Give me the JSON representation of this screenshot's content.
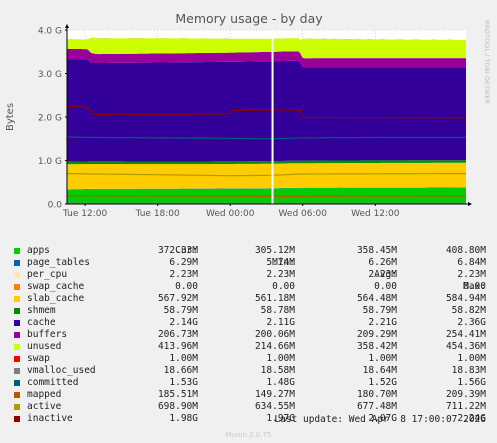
{
  "chart_data": {
    "type": "area",
    "title": "Memory usage - by day",
    "ylabel": "Bytes",
    "side_label": "RRDTOOL / TOBI OETIKER",
    "ylim": [
      0,
      4000000000
    ],
    "xlim_hours": [
      -13.5,
      19.5
    ],
    "y_ticks": [
      {
        "value": 0,
        "label": "0.0"
      },
      {
        "value": 1000000000,
        "label": "1.0 G"
      },
      {
        "value": 2000000000,
        "label": "2.0 G"
      },
      {
        "value": 3000000000,
        "label": "3.0 G"
      },
      {
        "value": 4000000000,
        "label": "4.0 G"
      }
    ],
    "x_ticks": [
      {
        "hour": -12,
        "label": "Tue 12:00"
      },
      {
        "hour": -6,
        "label": "Tue 18:00"
      },
      {
        "hour": 0,
        "label": "Wed 00:00"
      },
      {
        "hour": 6,
        "label": "Wed 06:00"
      },
      {
        "hour": 12,
        "label": "Wed 12:00"
      }
    ],
    "gap_at_hour": 3.5,
    "headers": {
      "cur": "Cur:",
      "min": "Min:",
      "avg": "Avg:",
      "max": "Max:"
    },
    "legend": [
      {
        "name": "apps",
        "color": "#00cc00",
        "cur": "372.33M",
        "min": "305.12M",
        "avg": "358.45M",
        "max": "408.80M"
      },
      {
        "name": "page_tables",
        "color": "#0066b3",
        "cur": "6.29M",
        "min": "5.74M",
        "avg": "6.26M",
        "max": "6.84M"
      },
      {
        "name": "per_cpu",
        "color": "#ffe4b5",
        "cur": "2.23M",
        "min": "2.23M",
        "avg": "2.23M",
        "max": "2.23M"
      },
      {
        "name": "swap_cache",
        "color": "#ff8000",
        "cur": "0.00",
        "min": "0.00",
        "avg": "0.00",
        "max": "0.00"
      },
      {
        "name": "slab_cache",
        "color": "#ffcc00",
        "cur": "567.92M",
        "min": "561.18M",
        "avg": "564.48M",
        "max": "584.94M"
      },
      {
        "name": "shmem",
        "color": "#008f00",
        "cur": "58.79M",
        "min": "58.78M",
        "avg": "58.79M",
        "max": "58.82M"
      },
      {
        "name": "cache",
        "color": "#330099",
        "cur": "2.14G",
        "min": "2.11G",
        "avg": "2.21G",
        "max": "2.36G"
      },
      {
        "name": "buffers",
        "color": "#990099",
        "cur": "206.73M",
        "min": "200.06M",
        "avg": "209.29M",
        "max": "254.41M"
      },
      {
        "name": "unused",
        "color": "#ccff00",
        "cur": "413.96M",
        "min": "214.66M",
        "avg": "358.42M",
        "max": "454.36M"
      },
      {
        "name": "swap",
        "color": "#ff0000",
        "cur": "1.00M",
        "min": "1.00M",
        "avg": "1.00M",
        "max": "1.00M"
      },
      {
        "name": "vmalloc_used",
        "color": "#808080",
        "cur": "18.66M",
        "min": "18.58M",
        "avg": "18.64M",
        "max": "18.83M"
      },
      {
        "name": "committed",
        "color": "#005b7f",
        "cur": "1.53G",
        "min": "1.48G",
        "avg": "1.52G",
        "max": "1.56G"
      },
      {
        "name": "mapped",
        "color": "#b35900",
        "cur": "185.51M",
        "min": "149.27M",
        "avg": "180.70M",
        "max": "209.39M"
      },
      {
        "name": "active",
        "color": "#b39900",
        "cur": "698.90M",
        "min": "634.55M",
        "avg": "677.48M",
        "max": "711.22M"
      },
      {
        "name": "inactive",
        "color": "#8f0000",
        "cur": "1.98G",
        "min": "1.97G",
        "avg": "2.07G",
        "max": "2.24G"
      }
    ],
    "stack_order": [
      "apps",
      "page_tables",
      "per_cpu",
      "swap_cache",
      "slab_cache",
      "shmem",
      "cache",
      "buffers",
      "unused",
      "swap"
    ],
    "line_order": [
      "vmalloc_used",
      "committed",
      "mapped",
      "active",
      "inactive"
    ],
    "series": [
      {
        "name": "apps",
        "x": [
          -13.5,
          -11.5,
          -5,
          0,
          3.5,
          5,
          10,
          19.5
        ],
        "values": [
          330000000,
          340000000,
          345000000,
          350000000,
          355000000,
          365000000,
          370000000,
          372330000
        ]
      },
      {
        "name": "page_tables",
        "x": [
          -13.5,
          19.5
        ],
        "values": [
          6000000,
          6290000
        ]
      },
      {
        "name": "per_cpu",
        "x": [
          -13.5,
          19.5
        ],
        "values": [
          2230000,
          2230000
        ]
      },
      {
        "name": "swap_cache",
        "x": [
          -13.5,
          19.5
        ],
        "values": [
          0,
          0
        ]
      },
      {
        "name": "slab_cache",
        "x": [
          -13.5,
          -5,
          0,
          3.5,
          8,
          19.5
        ],
        "values": [
          575000000,
          565000000,
          562000000,
          562000000,
          563000000,
          567920000
        ]
      },
      {
        "name": "shmem",
        "x": [
          -13.5,
          19.5
        ],
        "values": [
          58780000,
          58790000
        ]
      },
      {
        "name": "cache",
        "x": [
          -13.5,
          -11.8,
          -11.5,
          -8,
          -4,
          -2,
          0,
          3.5,
          5.7,
          6,
          12,
          19.5
        ],
        "values": [
          2360000000,
          2350000000,
          2260000000,
          2270000000,
          2280000000,
          2285000000,
          2290000000,
          2300000000,
          2295000000,
          2150000000,
          2145000000,
          2140000000
        ]
      },
      {
        "name": "buffers",
        "x": [
          -13.5,
          -11.5,
          -11,
          0,
          3.5,
          5.8,
          6,
          19.5
        ],
        "values": [
          235000000,
          230000000,
          205000000,
          210000000,
          215000000,
          220000000,
          206000000,
          206730000
        ]
      },
      {
        "name": "unused",
        "x": [
          -13.5,
          -11.8,
          -11.5,
          -6,
          0,
          3.5,
          5.8,
          6,
          12,
          19.5
        ],
        "values": [
          220000000,
          220000000,
          360000000,
          350000000,
          320000000,
          300000000,
          300000000,
          450000000,
          430000000,
          413960000
        ]
      },
      {
        "name": "swap",
        "x": [
          -13.5,
          19.5
        ],
        "values": [
          1000000,
          1000000
        ]
      },
      {
        "name": "vmalloc_used",
        "x": [
          -13.5,
          19.5
        ],
        "values": [
          18600000,
          18660000
        ]
      },
      {
        "name": "committed",
        "x": [
          -13.5,
          -11.5,
          0,
          3.5,
          6,
          12,
          19.5
        ],
        "values": [
          1540000000,
          1530000000,
          1510000000,
          1500000000,
          1520000000,
          1530000000,
          1530000000
        ]
      },
      {
        "name": "mapped",
        "x": [
          -13.5,
          0,
          3.5,
          19.5
        ],
        "values": [
          190000000,
          180000000,
          175000000,
          185510000
        ]
      },
      {
        "name": "active",
        "x": [
          -13.5,
          -11.5,
          -5,
          0,
          3.5,
          6,
          19.5
        ],
        "values": [
          700000000,
          690000000,
          670000000,
          650000000,
          660000000,
          690000000,
          698900000
        ]
      },
      {
        "name": "inactive",
        "x": [
          -13.5,
          -12,
          -11.6,
          -11.4,
          0,
          0.2,
          3.5,
          5.8,
          6,
          12,
          19.5
        ],
        "values": [
          2240000000,
          2230000000,
          2180000000,
          2060000000,
          2070000000,
          2150000000,
          2160000000,
          2160000000,
          1990000000,
          1985000000,
          1980000000
        ]
      }
    ]
  },
  "last_update": "Last update: Wed Apr  8 17:00:07 2026",
  "footer": "Munin 2.0.75"
}
